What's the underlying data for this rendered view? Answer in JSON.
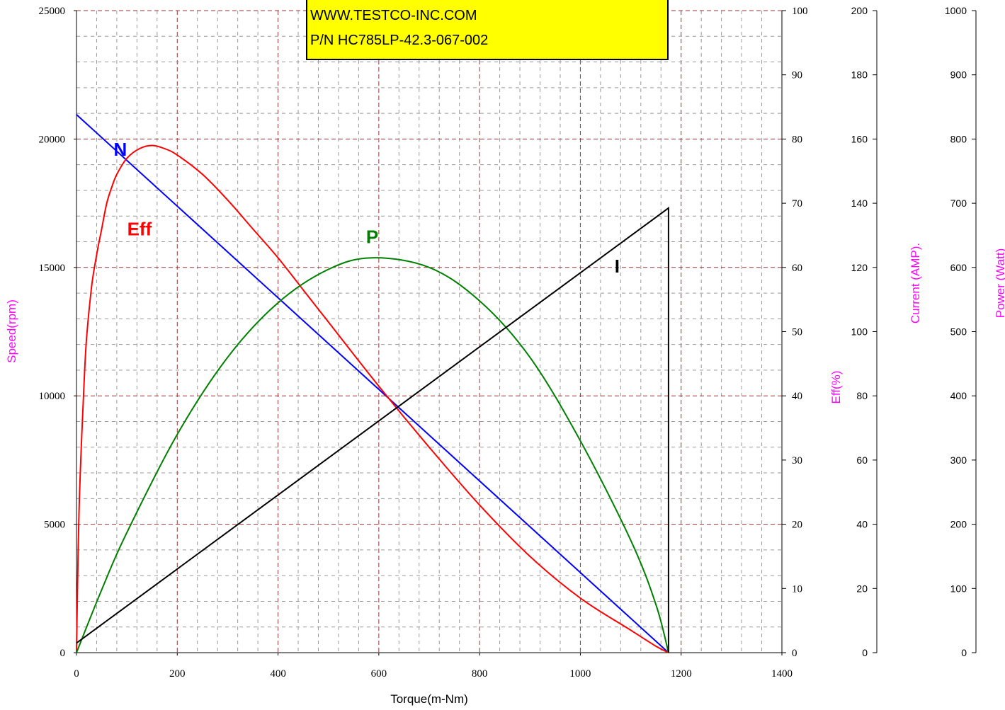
{
  "info_box": {
    "lines": [
      "",
      "WWW.TESTCO-INC.COM",
      "P/N HC785LP-42.3-067-002"
    ],
    "background": "#ffff00"
  },
  "chart_data": {
    "type": "line",
    "x": [
      0,
      100,
      200,
      300,
      400,
      500,
      600,
      700,
      800,
      900,
      1000,
      1100,
      1175
    ],
    "xlabel": "Torque(m-Nm)",
    "xlim": [
      0,
      1400
    ],
    "x_ticks": [
      0,
      200,
      400,
      600,
      800,
      1000,
      1200,
      1400
    ],
    "grid": true,
    "axes": [
      {
        "id": "speed",
        "label": "Speed(rpm)",
        "range": [
          0,
          25000
        ],
        "ticks": [
          0,
          5000,
          10000,
          15000,
          20000,
          25000
        ],
        "side": "left",
        "label_color": "#ff00ff"
      },
      {
        "id": "eff",
        "label": "Eff(%)",
        "range": [
          0,
          100
        ],
        "ticks": [
          0,
          10,
          20,
          30,
          40,
          50,
          60,
          70,
          80,
          90,
          100
        ],
        "side": "right",
        "label_color": "#ff00ff"
      },
      {
        "id": "current",
        "label": "Current (AMP).",
        "range": [
          0,
          200
        ],
        "ticks": [
          0,
          20,
          40,
          60,
          80,
          100,
          120,
          140,
          160,
          180,
          200
        ],
        "side": "right",
        "label_color": "#ff00ff"
      },
      {
        "id": "power",
        "label": "Power (Watt)",
        "range": [
          0,
          1000
        ],
        "ticks": [
          0,
          100,
          200,
          300,
          400,
          500,
          600,
          700,
          800,
          900,
          1000
        ],
        "side": "right",
        "label_color": "#ff00ff"
      }
    ],
    "series": [
      {
        "name": "N",
        "axis": "speed",
        "color": "#0000ff",
        "x": [
          0,
          1175
        ],
        "y": [
          20950,
          0
        ],
        "label_at": [
          87,
          19600
        ]
      },
      {
        "name": "Eff",
        "axis": "eff",
        "color": "#ff0000",
        "x": [
          0,
          2,
          5,
          10,
          15,
          20,
          30,
          40,
          50,
          60,
          70,
          80,
          100,
          125,
          150,
          175,
          200,
          250,
          300,
          350,
          400,
          450,
          500,
          600,
          700,
          800,
          900,
          1000,
          1100,
          1150,
          1175
        ],
        "y": [
          0,
          10,
          22,
          33,
          42,
          49,
          57,
          62,
          66,
          70,
          72.5,
          74.5,
          77,
          78.5,
          79,
          78.5,
          77.5,
          74.5,
          70.5,
          66,
          61.5,
          56.5,
          51.5,
          41.5,
          32,
          23,
          15,
          8.5,
          3.5,
          1,
          0
        ],
        "label_at": [
          125,
          16500
        ]
      },
      {
        "name": "P",
        "axis": "power",
        "color": "#008000",
        "x": [
          0,
          50,
          100,
          200,
          300,
          400,
          500,
          587,
          700,
          800,
          900,
          1000,
          1100,
          1150,
          1175
        ],
        "y": [
          0,
          98,
          187,
          340,
          460,
          545,
          597,
          615,
          600,
          548,
          460,
          330,
          175,
          75,
          0
        ],
        "label_at": [
          587,
          16200
        ]
      },
      {
        "name": "I",
        "axis": "current",
        "color": "#000000",
        "x": [
          0,
          1175,
          1175
        ],
        "y": [
          3,
          138.5,
          0
        ],
        "label_at": [
          1073,
          15050
        ]
      }
    ]
  }
}
